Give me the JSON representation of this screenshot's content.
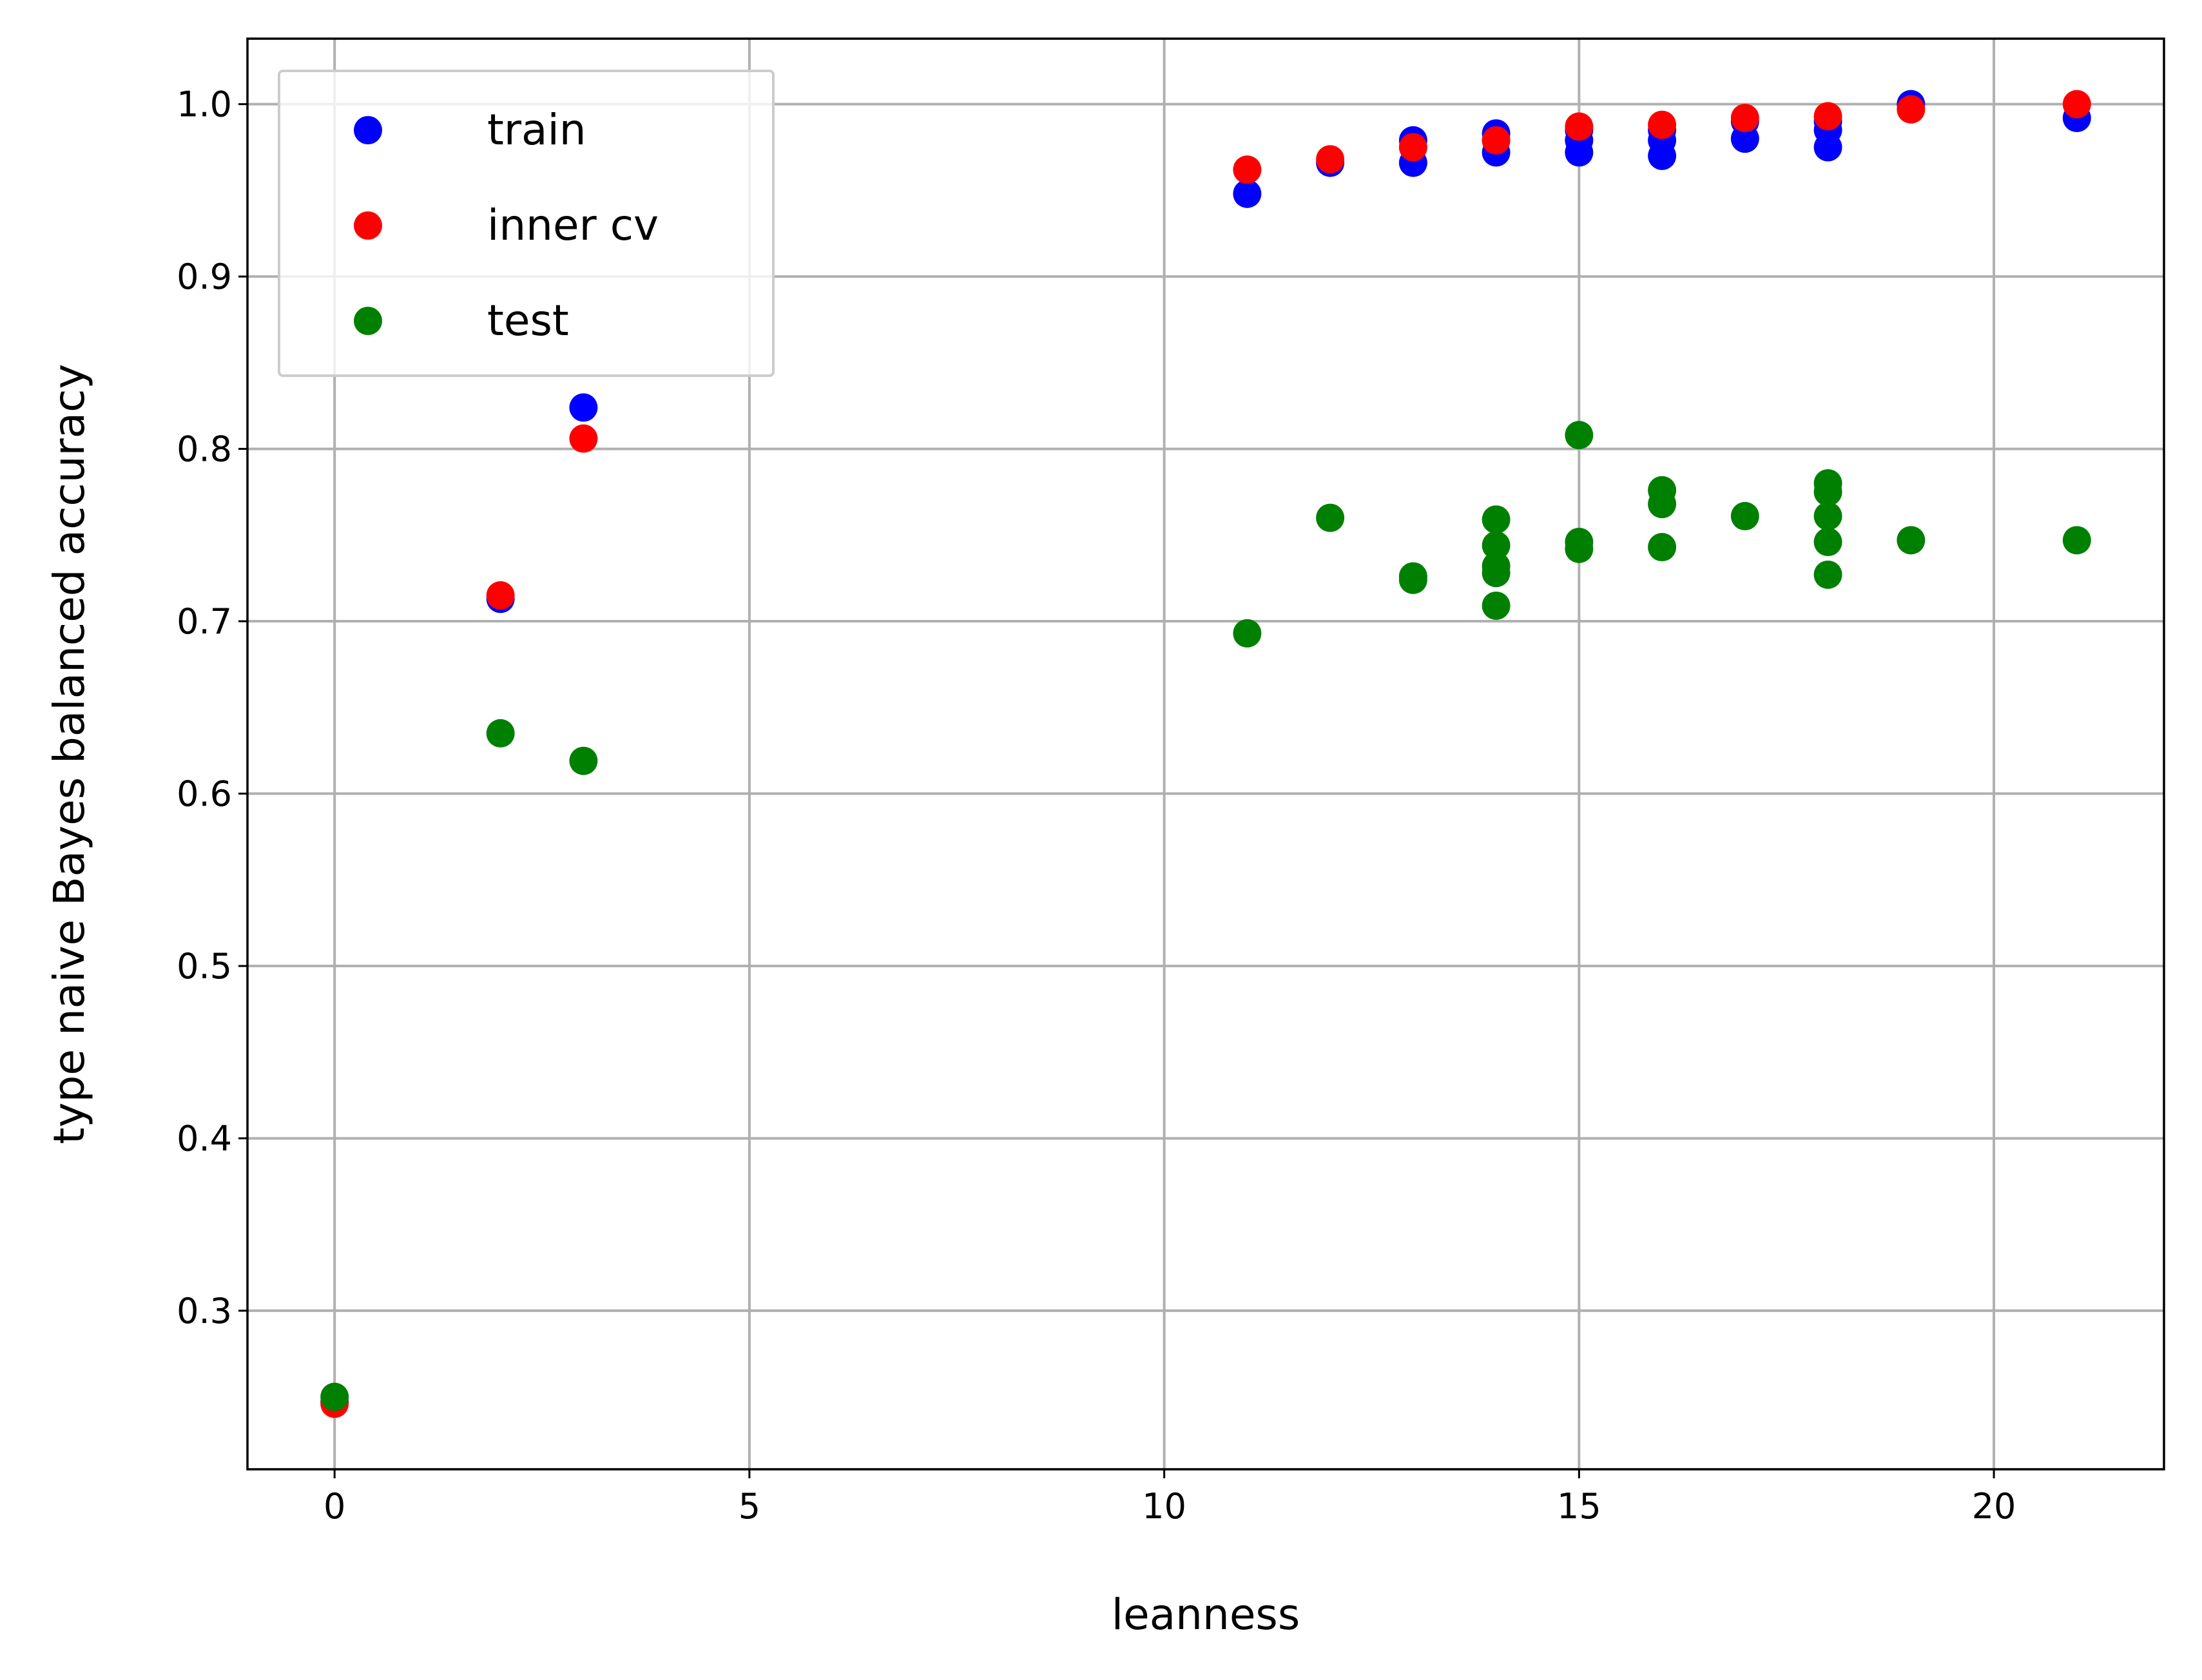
{
  "chart_data": {
    "type": "scatter",
    "title": "",
    "xlabel": "leanness",
    "ylabel": "type naive Bayes balanced accuracy",
    "xlim": [
      -1.05,
      22.05
    ],
    "ylim": [
      0.208,
      1.038
    ],
    "xticks": [
      0,
      5,
      10,
      15,
      20
    ],
    "yticks": [
      0.3,
      0.4,
      0.5,
      0.6,
      0.7,
      0.8,
      0.9,
      1.0
    ],
    "xtick_labels": [
      "0",
      "5",
      "10",
      "15",
      "20"
    ],
    "ytick_labels": [
      "0.3",
      "0.4",
      "0.5",
      "0.6",
      "0.7",
      "0.8",
      "0.9",
      "1.0"
    ],
    "grid": true,
    "legend_position": "top-left",
    "series": [
      {
        "name": "train",
        "color": "#0000ff",
        "points": [
          [
            0,
            0.247
          ],
          [
            2,
            0.713
          ],
          [
            3,
            0.824
          ],
          [
            11,
            0.948
          ],
          [
            12,
            0.966
          ],
          [
            13,
            0.979
          ],
          [
            13,
            0.966
          ],
          [
            14,
            0.983
          ],
          [
            14,
            0.979
          ],
          [
            14,
            0.972
          ],
          [
            15,
            0.985
          ],
          [
            15,
            0.979
          ],
          [
            15,
            0.972
          ],
          [
            16,
            0.985
          ],
          [
            16,
            0.979
          ],
          [
            16,
            0.97
          ],
          [
            17,
            0.98
          ],
          [
            17,
            0.99
          ],
          [
            18,
            0.99
          ],
          [
            18,
            0.985
          ],
          [
            18,
            0.975
          ],
          [
            19,
            1.0
          ],
          [
            21,
            0.992
          ]
        ]
      },
      {
        "name": "inner cv",
        "color": "#ff0000",
        "points": [
          [
            0,
            0.246
          ],
          [
            2,
            0.715
          ],
          [
            3,
            0.806
          ],
          [
            11,
            0.962
          ],
          [
            12,
            0.968
          ],
          [
            13,
            0.975
          ],
          [
            14,
            0.979
          ],
          [
            15,
            0.987
          ],
          [
            16,
            0.988
          ],
          [
            17,
            0.992
          ],
          [
            18,
            0.993
          ],
          [
            19,
            0.997
          ],
          [
            21,
            1.0
          ]
        ]
      },
      {
        "name": "test",
        "color": "#008000",
        "points": [
          [
            0,
            0.25
          ],
          [
            2,
            0.635
          ],
          [
            3,
            0.619
          ],
          [
            11,
            0.693
          ],
          [
            12,
            0.76
          ],
          [
            13,
            0.726
          ],
          [
            13,
            0.724
          ],
          [
            14,
            0.759
          ],
          [
            14,
            0.744
          ],
          [
            14,
            0.732
          ],
          [
            14,
            0.728
          ],
          [
            14,
            0.709
          ],
          [
            15,
            0.808
          ],
          [
            15,
            0.746
          ],
          [
            15,
            0.742
          ],
          [
            16,
            0.776
          ],
          [
            16,
            0.768
          ],
          [
            16,
            0.743
          ],
          [
            17,
            0.761
          ],
          [
            18,
            0.78
          ],
          [
            18,
            0.775
          ],
          [
            18,
            0.761
          ],
          [
            18,
            0.746
          ],
          [
            18,
            0.727
          ],
          [
            19,
            0.747
          ],
          [
            21,
            0.747
          ]
        ]
      }
    ]
  }
}
